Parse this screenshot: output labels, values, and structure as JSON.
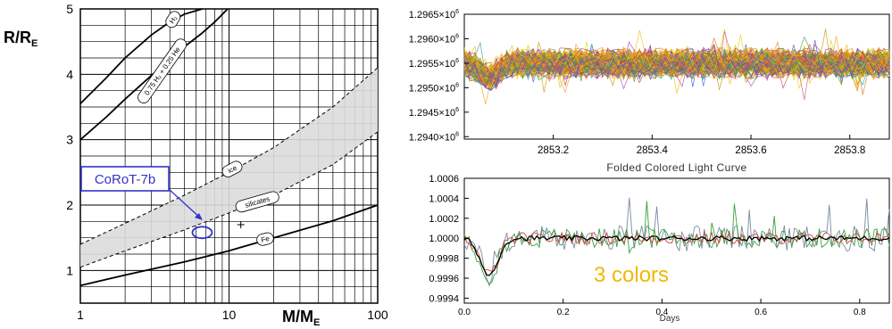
{
  "chart_data": [
    {
      "type": "line",
      "panel": "mass-radius",
      "xlabel_main": "M/M",
      "xlabel_sub": "E",
      "ylabel_main": "R/R",
      "ylabel_sub": "E",
      "xscale": "log",
      "xlim": [
        1,
        100
      ],
      "ylim": [
        0.5,
        5
      ],
      "x_ticks": [
        {
          "value": 1,
          "label": "1"
        },
        {
          "value": 10,
          "label": "10"
        },
        {
          "value": 100,
          "label": "100"
        }
      ],
      "y_ticks": [
        {
          "value": 1,
          "label": "1"
        },
        {
          "value": 2,
          "label": "2"
        },
        {
          "value": 3,
          "label": "3"
        },
        {
          "value": 4,
          "label": "4"
        },
        {
          "value": 5,
          "label": "5"
        }
      ],
      "grid": true,
      "series": [
        {
          "name": "H₂",
          "style": "solid",
          "x": [
            1,
            1.5,
            2,
            3,
            4,
            5,
            6.6
          ],
          "y": [
            3.55,
            3.95,
            4.25,
            4.6,
            4.8,
            4.92,
            5.0
          ]
        },
        {
          "name": "0.75 H₂ + 0.25 He",
          "style": "solid",
          "x": [
            1,
            1.5,
            2,
            3,
            4,
            5,
            6.5,
            8,
            9.8
          ],
          "y": [
            3.0,
            3.35,
            3.62,
            3.98,
            4.23,
            4.42,
            4.62,
            4.8,
            5.0
          ]
        },
        {
          "name": "ice",
          "style": "dashed",
          "x": [
            1,
            2,
            5,
            10,
            20,
            50,
            100
          ],
          "y": [
            1.4,
            1.72,
            2.15,
            2.5,
            2.88,
            3.5,
            4.1
          ]
        },
        {
          "name": "silicates",
          "style": "dashed",
          "x": [
            1,
            2,
            5,
            10,
            20,
            50,
            100
          ],
          "y": [
            1.05,
            1.3,
            1.62,
            1.88,
            2.15,
            2.62,
            3.12
          ]
        },
        {
          "name": "Fe",
          "style": "solid",
          "x": [
            1,
            2,
            5,
            10,
            20,
            50,
            100
          ],
          "y": [
            0.77,
            0.93,
            1.13,
            1.3,
            1.5,
            1.76,
            2.0
          ]
        }
      ],
      "point": {
        "x": 12,
        "y": 1.7,
        "marker": "+"
      },
      "ellipse": {
        "x": 6.6,
        "y": 1.58
      },
      "callout": {
        "label": "CoRoT-7b",
        "color": "#3333cc"
      }
    },
    {
      "type": "line",
      "panel": "light-curve-overlay",
      "xlim": [
        2853.02,
        2853.88
      ],
      "ylim": [
        1293950,
        1296500
      ],
      "x_ticks": [
        {
          "value": 2853.2,
          "label": "2853.2"
        },
        {
          "value": 2853.4,
          "label": "2853.4"
        },
        {
          "value": 2853.6,
          "label": "2853.6"
        },
        {
          "value": 2853.8,
          "label": "2853.8"
        }
      ],
      "y_ticks": [
        {
          "value": 1294000,
          "mantissa": "1.2940×10",
          "exp": "6"
        },
        {
          "value": 1294500,
          "mantissa": "1.2945×10",
          "exp": "6"
        },
        {
          "value": 1295000,
          "mantissa": "1.2950×10",
          "exp": "6"
        },
        {
          "value": 1295500,
          "mantissa": "1.2955×10",
          "exp": "6"
        },
        {
          "value": 1296000,
          "mantissa": "1.2960×10",
          "exp": "6"
        },
        {
          "value": 1296500,
          "mantissa": "1.2965×10",
          "exp": "6"
        }
      ],
      "title": "Folded Colored Light Curve",
      "baseline": 1295500,
      "n_curves": 120,
      "colors": [
        "#e6b800",
        "#f0c000",
        "#d09000",
        "#e8d000",
        "#c83c3c",
        "#3aa03a",
        "#3a5ac8",
        "#a040c0",
        "#c87820",
        "#2a9aa0",
        "#f2a020",
        "#d04a80"
      ],
      "transit": {
        "x": 2853.07,
        "depth": 300
      }
    },
    {
      "type": "line",
      "panel": "folded-three-colors",
      "xlabel": "Days",
      "xlim": [
        0,
        0.86
      ],
      "ylim": [
        0.99935,
        1.0006
      ],
      "x_ticks": [
        {
          "value": 0.0,
          "label": "0.0"
        },
        {
          "value": 0.2,
          "label": "0.2"
        },
        {
          "value": 0.4,
          "label": "0.4"
        },
        {
          "value": 0.6,
          "label": "0.6"
        },
        {
          "value": 0.8,
          "label": "0.8"
        }
      ],
      "y_ticks": [
        {
          "value": 0.9994,
          "label": "0.9994"
        },
        {
          "value": 0.9996,
          "label": "0.9996"
        },
        {
          "value": 0.9998,
          "label": "0.9998"
        },
        {
          "value": 1.0,
          "label": "1.0000"
        },
        {
          "value": 1.0002,
          "label": "1.0002"
        },
        {
          "value": 1.0004,
          "label": "1.0004"
        },
        {
          "value": 1.0006,
          "label": "1.0006"
        }
      ],
      "annotation": {
        "text": "3 colors",
        "color": "#f2b800"
      },
      "transit": {
        "center": 0.05,
        "depth": 0.00037,
        "width": 0.025
      },
      "series_colors": [
        "#7a8aa0",
        "#3aa03a",
        "#d04040",
        "#000000"
      ]
    }
  ]
}
